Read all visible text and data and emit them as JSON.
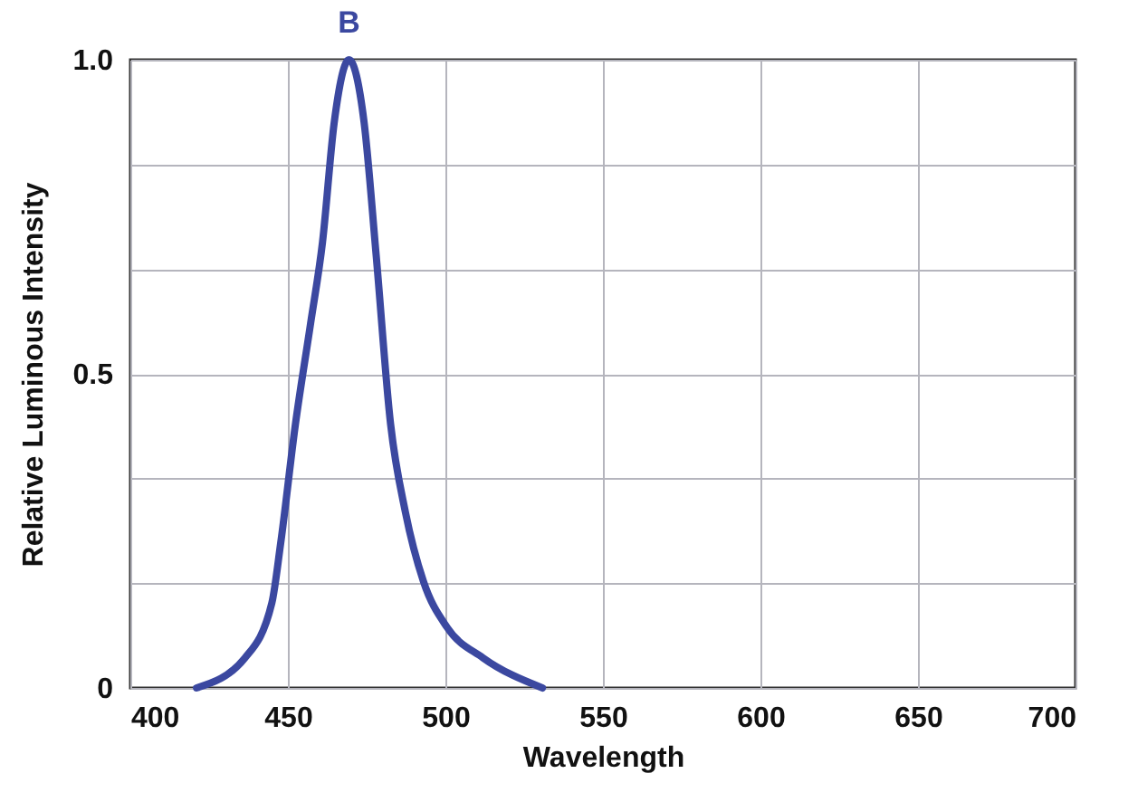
{
  "chart_data": {
    "type": "line",
    "xlabel": "Wavelength",
    "ylabel": "Relative Luminous Intensity",
    "x": [
      421,
      436.4,
      444.9,
      447.7,
      452.4,
      457.2,
      461,
      464.7,
      469.4,
      474.2,
      478,
      482.6,
      487.3,
      493,
      500.6,
      511.9,
      530.8
    ],
    "series": [
      {
        "name": "B",
        "color": "#3b48a0",
        "values": [
          0,
          0.048,
          0.135,
          0.23,
          0.42,
          0.58,
          0.71,
          0.9,
          1,
          0.9,
          0.69,
          0.42,
          0.28,
          0.17,
          0.096,
          0.048,
          0
        ]
      }
    ],
    "xlim": [
      400,
      700
    ],
    "xticks": [
      400,
      450,
      500,
      550,
      600,
      650,
      700
    ],
    "ylim": [
      0,
      1
    ],
    "yticks": [
      0,
      {
        "value": 0.167,
        "label": null
      },
      {
        "value": 0.333,
        "label": null
      },
      0.5,
      {
        "value": 0.667,
        "label": null
      },
      {
        "value": 0.833,
        "label": null
      },
      {
        "value": 1,
        "label": "1.0"
      }
    ],
    "grid": true,
    "legend": false,
    "marker": "none",
    "line_style": "solid"
  }
}
